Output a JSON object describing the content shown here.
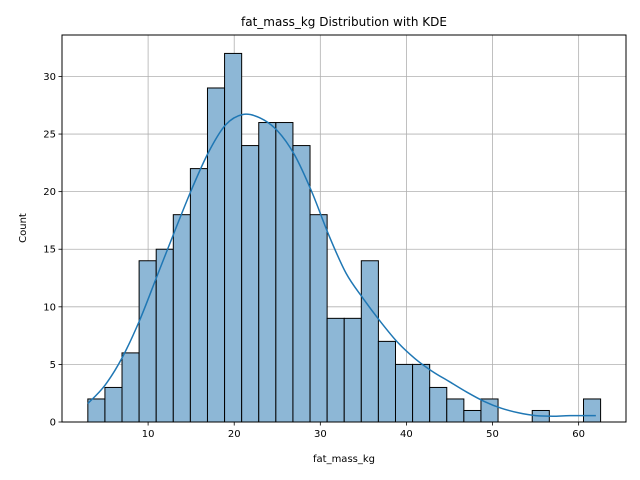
{
  "chart_data": {
    "type": "bar",
    "title": "fat_mass_kg Distribution with KDE",
    "xlabel": "fat_mass_kg",
    "ylabel": "Count",
    "xlim": [
      0,
      65.5
    ],
    "ylim": [
      0,
      33.6
    ],
    "xticks": [
      10,
      20,
      30,
      40,
      50,
      60
    ],
    "yticks": [
      0,
      5,
      10,
      15,
      20,
      25,
      30
    ],
    "grid": true,
    "bins": {
      "start": 3.0,
      "width": 1.985,
      "counts": [
        2,
        3,
        6,
        14,
        15,
        18,
        22,
        29,
        32,
        24,
        26,
        26,
        24,
        18,
        9,
        9,
        14,
        7,
        5,
        5,
        3,
        2,
        1,
        2,
        0,
        0,
        1,
        0,
        0,
        2
      ]
    },
    "kde": {
      "x": [
        3,
        5,
        7,
        9,
        11,
        13,
        15,
        17,
        19,
        21,
        23,
        25,
        27,
        29,
        31,
        33,
        35,
        37,
        39,
        41,
        43,
        45,
        47,
        49,
        51,
        53,
        55,
        57,
        59,
        62
      ],
      "y": [
        1.6,
        3.2,
        5.6,
        8.8,
        12.6,
        16.4,
        20.1,
        23.4,
        25.8,
        26.7,
        26.4,
        25.3,
        23.2,
        20.0,
        16.2,
        12.9,
        10.7,
        8.7,
        6.9,
        5.5,
        4.4,
        3.5,
        2.6,
        1.8,
        1.2,
        0.8,
        0.55,
        0.5,
        0.55,
        0.55
      ]
    },
    "colors": {
      "bar_fill": "#8db7d6",
      "bar_edge": "#000000",
      "kde_line": "#1f77b4",
      "grid": "#b0b0b0"
    }
  }
}
